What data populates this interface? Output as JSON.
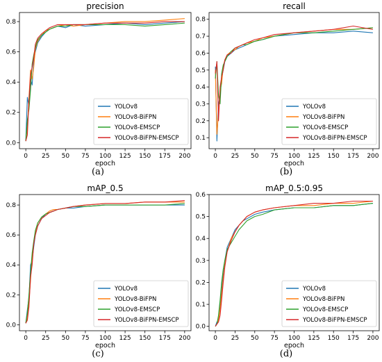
{
  "figure": {
    "captions": [
      "(a)",
      "(b)",
      "(c)",
      "(d)"
    ]
  },
  "series_colors": {
    "YOLOv8": "#1f77b4",
    "YOLOv8-BiFPN": "#ff7f0e",
    "YOLOv8-EMSCP": "#2ca02c",
    "YOLOv8-BiFPN-EMSCP": "#d62728"
  },
  "chart_data": [
    {
      "type": "line",
      "title": "precision",
      "xlabel": "epoch",
      "ylabel": "",
      "xlim": [
        -8,
        208
      ],
      "ylim": [
        -0.04,
        0.86
      ],
      "xticks": [
        0,
        25,
        50,
        75,
        100,
        125,
        150,
        175,
        200
      ],
      "yticks": [
        0.0,
        0.2,
        0.4,
        0.6,
        0.8
      ],
      "ytick_labels": [
        "0.0",
        "0.2",
        "0.4",
        "0.6",
        "0.8"
      ],
      "legend_position": "lower-right",
      "grid": false,
      "x": [
        0,
        2,
        4,
        6,
        8,
        10,
        12,
        15,
        20,
        25,
        30,
        35,
        40,
        50,
        60,
        75,
        100,
        125,
        150,
        175,
        200
      ],
      "series": [
        {
          "name": "YOLOv8",
          "values": [
            0.01,
            0.3,
            0.24,
            0.42,
            0.38,
            0.55,
            0.6,
            0.66,
            0.7,
            0.73,
            0.75,
            0.76,
            0.77,
            0.76,
            0.78,
            0.77,
            0.78,
            0.79,
            0.78,
            0.79,
            0.8
          ]
        },
        {
          "name": "YOLOv8-BiFPN",
          "values": [
            0.01,
            0.1,
            0.3,
            0.48,
            0.42,
            0.5,
            0.62,
            0.67,
            0.71,
            0.74,
            0.75,
            0.76,
            0.77,
            0.78,
            0.77,
            0.78,
            0.79,
            0.8,
            0.8,
            0.81,
            0.82
          ]
        },
        {
          "name": "YOLOv8-EMSCP",
          "values": [
            0.01,
            0.15,
            0.22,
            0.35,
            0.52,
            0.58,
            0.63,
            0.68,
            0.71,
            0.73,
            0.75,
            0.76,
            0.77,
            0.77,
            0.78,
            0.78,
            0.78,
            0.78,
            0.77,
            0.78,
            0.79
          ]
        },
        {
          "name": "YOLOv8-BiFPN-EMSCP",
          "values": [
            0.01,
            0.05,
            0.28,
            0.45,
            0.5,
            0.56,
            0.65,
            0.69,
            0.72,
            0.74,
            0.76,
            0.77,
            0.78,
            0.78,
            0.78,
            0.78,
            0.79,
            0.79,
            0.79,
            0.8,
            0.8
          ]
        }
      ]
    },
    {
      "type": "line",
      "title": "recall",
      "xlabel": "epoch",
      "ylabel": "",
      "xlim": [
        -8,
        208
      ],
      "ylim": [
        0.035,
        0.84
      ],
      "xticks": [
        0,
        25,
        50,
        75,
        100,
        125,
        150,
        175,
        200
      ],
      "yticks": [
        0.1,
        0.2,
        0.3,
        0.4,
        0.5,
        0.6,
        0.7,
        0.8
      ],
      "ytick_labels": [
        "0.1",
        "0.2",
        "0.3",
        "0.4",
        "0.5",
        "0.6",
        "0.7",
        "0.8"
      ],
      "legend_position": "lower-right",
      "grid": false,
      "x": [
        0,
        2,
        4,
        6,
        8,
        10,
        12,
        15,
        20,
        25,
        30,
        35,
        40,
        50,
        60,
        75,
        100,
        125,
        150,
        175,
        200
      ],
      "series": [
        {
          "name": "YOLOv8",
          "values": [
            0.52,
            0.08,
            0.3,
            0.35,
            0.45,
            0.5,
            0.55,
            0.58,
            0.6,
            0.62,
            0.63,
            0.64,
            0.65,
            0.67,
            0.68,
            0.7,
            0.71,
            0.72,
            0.72,
            0.73,
            0.72
          ]
        },
        {
          "name": "YOLOv8-BiFPN",
          "values": [
            0.5,
            0.12,
            0.25,
            0.38,
            0.42,
            0.52,
            0.56,
            0.59,
            0.61,
            0.62,
            0.64,
            0.65,
            0.66,
            0.67,
            0.69,
            0.7,
            0.72,
            0.73,
            0.74,
            0.74,
            0.75
          ]
        },
        {
          "name": "YOLOv8-EMSCP",
          "values": [
            0.45,
            0.55,
            0.35,
            0.3,
            0.48,
            0.53,
            0.55,
            0.58,
            0.61,
            0.63,
            0.64,
            0.65,
            0.65,
            0.67,
            0.68,
            0.7,
            0.72,
            0.72,
            0.73,
            0.74,
            0.75
          ]
        },
        {
          "name": "YOLOv8-BiFPN-EMSCP",
          "values": [
            0.48,
            0.55,
            0.2,
            0.4,
            0.46,
            0.5,
            0.56,
            0.59,
            0.6,
            0.63,
            0.64,
            0.65,
            0.66,
            0.68,
            0.69,
            0.71,
            0.72,
            0.73,
            0.74,
            0.76,
            0.74
          ]
        }
      ]
    },
    {
      "type": "line",
      "title": "mAP_0.5",
      "xlabel": "epoch",
      "ylabel": "",
      "xlim": [
        -8,
        208
      ],
      "ylim": [
        -0.04,
        0.87
      ],
      "xticks": [
        0,
        25,
        50,
        75,
        100,
        125,
        150,
        175,
        200
      ],
      "yticks": [
        0.0,
        0.2,
        0.4,
        0.6,
        0.8
      ],
      "ytick_labels": [
        "0.0",
        "0.2",
        "0.4",
        "0.6",
        "0.8"
      ],
      "legend_position": "lower-right",
      "grid": false,
      "x": [
        0,
        2,
        4,
        6,
        8,
        10,
        12,
        15,
        20,
        25,
        30,
        35,
        40,
        50,
        60,
        75,
        100,
        125,
        150,
        175,
        200
      ],
      "series": [
        {
          "name": "YOLOv8",
          "values": [
            0.01,
            0.1,
            0.18,
            0.4,
            0.43,
            0.52,
            0.6,
            0.66,
            0.71,
            0.74,
            0.75,
            0.76,
            0.77,
            0.78,
            0.78,
            0.79,
            0.8,
            0.8,
            0.8,
            0.8,
            0.8
          ]
        },
        {
          "name": "YOLOv8-BiFPN",
          "values": [
            0.01,
            0.05,
            0.15,
            0.3,
            0.45,
            0.55,
            0.62,
            0.68,
            0.72,
            0.74,
            0.76,
            0.77,
            0.77,
            0.78,
            0.79,
            0.8,
            0.81,
            0.81,
            0.82,
            0.82,
            0.82
          ]
        },
        {
          "name": "YOLOv8-EMSCP",
          "values": [
            0.01,
            0.08,
            0.2,
            0.35,
            0.48,
            0.56,
            0.63,
            0.68,
            0.72,
            0.74,
            0.75,
            0.76,
            0.77,
            0.78,
            0.79,
            0.79,
            0.8,
            0.8,
            0.8,
            0.8,
            0.81
          ]
        },
        {
          "name": "YOLOv8-BiFPN-EMSCP",
          "values": [
            0.01,
            0.03,
            0.12,
            0.32,
            0.4,
            0.54,
            0.6,
            0.66,
            0.71,
            0.73,
            0.75,
            0.76,
            0.77,
            0.78,
            0.79,
            0.8,
            0.81,
            0.81,
            0.82,
            0.82,
            0.83
          ]
        }
      ]
    },
    {
      "type": "line",
      "title": "mAP_0.5:0.95",
      "xlabel": "epoch",
      "ylabel": "",
      "xlim": [
        -8,
        208
      ],
      "ylim": [
        -0.02,
        0.6
      ],
      "xticks": [
        0,
        25,
        50,
        75,
        100,
        125,
        150,
        175,
        200
      ],
      "yticks": [
        0.0,
        0.1,
        0.2,
        0.3,
        0.4,
        0.5,
        0.6
      ],
      "ytick_labels": [
        "0.0",
        "0.1",
        "0.2",
        "0.3",
        "0.4",
        "0.5",
        "0.6"
      ],
      "legend_position": "lower-right",
      "grid": false,
      "x": [
        0,
        2,
        4,
        6,
        8,
        10,
        12,
        15,
        20,
        25,
        30,
        35,
        40,
        50,
        60,
        75,
        100,
        125,
        150,
        175,
        200
      ],
      "series": [
        {
          "name": "YOLOv8",
          "values": [
            0.0,
            0.02,
            0.03,
            0.1,
            0.18,
            0.25,
            0.3,
            0.36,
            0.4,
            0.44,
            0.46,
            0.48,
            0.49,
            0.51,
            0.52,
            0.53,
            0.54,
            0.54,
            0.55,
            0.55,
            0.56
          ]
        },
        {
          "name": "YOLOv8-BiFPN",
          "values": [
            0.0,
            0.01,
            0.03,
            0.08,
            0.15,
            0.22,
            0.28,
            0.34,
            0.4,
            0.43,
            0.46,
            0.48,
            0.5,
            0.52,
            0.53,
            0.54,
            0.55,
            0.55,
            0.56,
            0.56,
            0.57
          ]
        },
        {
          "name": "YOLOv8-EMSCP",
          "values": [
            0.0,
            0.01,
            0.05,
            0.12,
            0.2,
            0.26,
            0.3,
            0.35,
            0.38,
            0.41,
            0.44,
            0.46,
            0.48,
            0.5,
            0.51,
            0.53,
            0.54,
            0.54,
            0.55,
            0.55,
            0.56
          ]
        },
        {
          "name": "YOLOv8-BiFPN-EMSCP",
          "values": [
            0.0,
            0.01,
            0.02,
            0.05,
            0.12,
            0.2,
            0.27,
            0.34,
            0.39,
            0.43,
            0.46,
            0.48,
            0.5,
            0.52,
            0.53,
            0.54,
            0.55,
            0.56,
            0.56,
            0.57,
            0.57
          ]
        }
      ]
    }
  ]
}
